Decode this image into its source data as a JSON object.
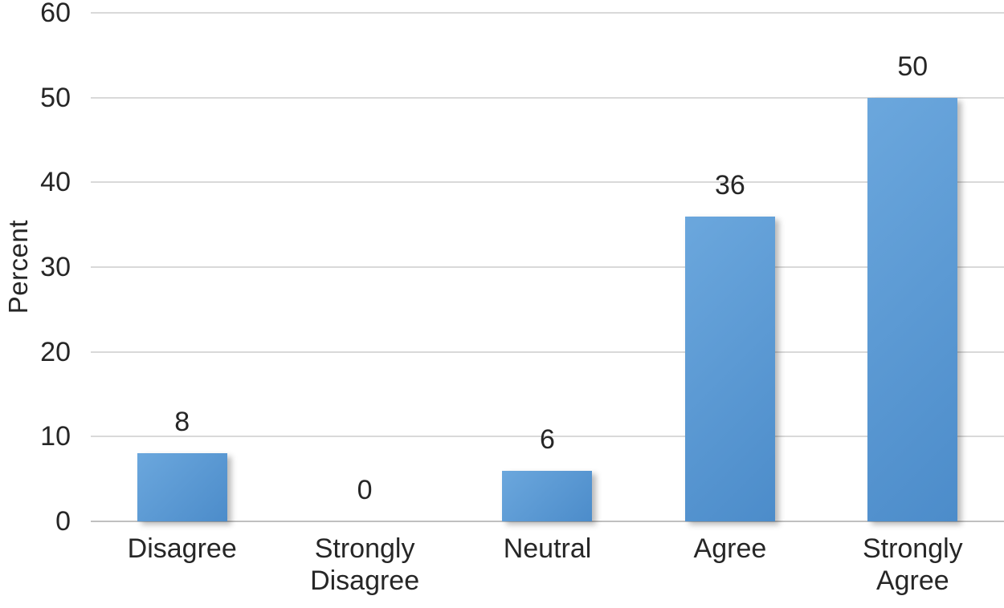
{
  "chart_data": {
    "type": "bar",
    "categories": [
      "Disagree",
      "Strongly Disagree",
      "Neutral",
      "Agree",
      "Strongly Agree"
    ],
    "values": [
      8,
      0,
      6,
      36,
      50
    ],
    "data_labels": [
      "8",
      "0",
      "6",
      "36",
      "50"
    ],
    "title": "",
    "xlabel": "",
    "ylabel": "Percent",
    "ylim": [
      0,
      60
    ],
    "yticks": [
      0,
      10,
      20,
      30,
      40,
      50,
      60
    ],
    "grid": true,
    "legend_position": "none",
    "colors": {
      "bar_fill": "#5b9bd5",
      "bar_gradient_top": "#6ba7dd",
      "bar_gradient_bottom": "#4c8cca",
      "gridline": "#d9d9d9",
      "axis_line": "#c0c0c0",
      "text": "#262626",
      "background": "#ffffff"
    }
  }
}
